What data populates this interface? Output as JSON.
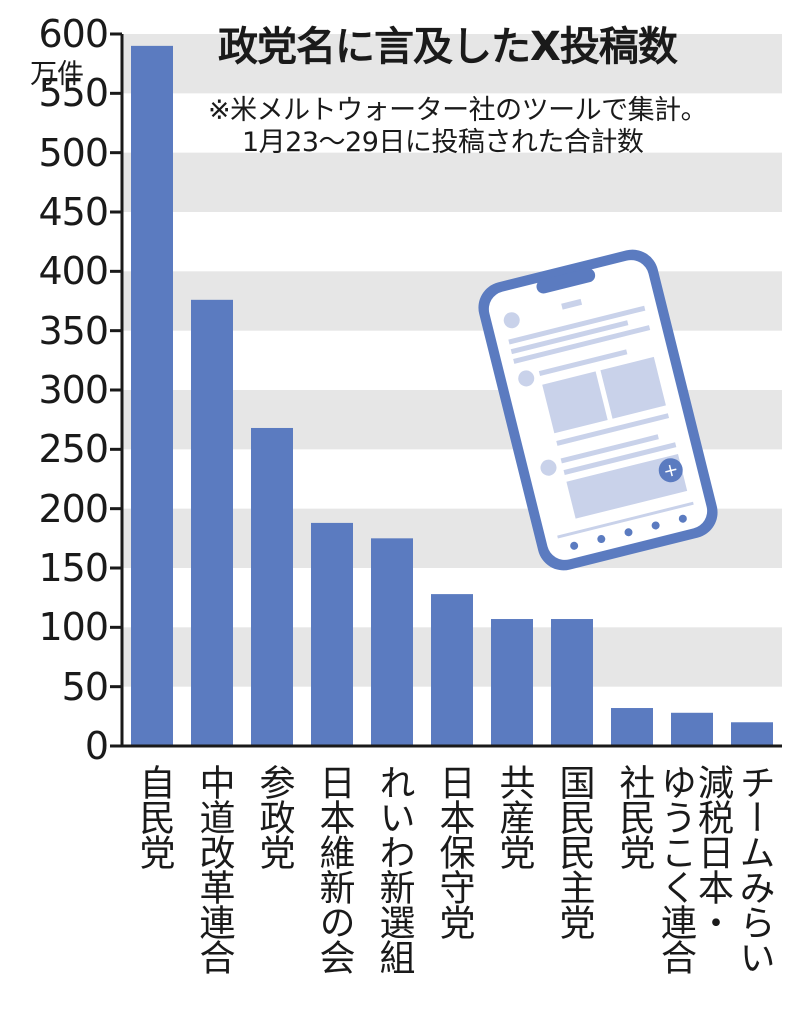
{
  "chart_data": {
    "type": "bar",
    "title": "政党名に言及したX投稿数",
    "note_lines": [
      "※米メルトウォーター社のツールで集計。",
      "1月23～29日に投稿された合計数"
    ],
    "ylabel": "万件",
    "xlabel": "",
    "ylim": [
      0,
      600
    ],
    "yticks": [
      0,
      50,
      100,
      150,
      200,
      250,
      300,
      350,
      400,
      450,
      500,
      550,
      600
    ],
    "grid": "alternating horizontal bands",
    "categories": [
      "自民党",
      "中道改革連合",
      "参政党",
      "日本維新の会",
      "れいわ新選組",
      "日本保守党",
      "共産党",
      "国民民主党",
      "社民党",
      "減税日本・ゆうこく連合",
      "チームみらい"
    ],
    "category_lines": [
      [
        "自民党"
      ],
      [
        "中道改革連合"
      ],
      [
        "参政党"
      ],
      [
        "日本維新の会"
      ],
      [
        "れいわ新選組"
      ],
      [
        "日本保守党"
      ],
      [
        "共産党"
      ],
      [
        "国民民主党"
      ],
      [
        "社民党"
      ],
      [
        "減税日本・",
        "ゆうこく連合"
      ],
      [
        "チームみらい"
      ]
    ],
    "values": [
      590,
      376,
      268,
      188,
      175,
      128,
      107,
      107,
      32,
      28,
      20
    ],
    "colors": {
      "bar": "#5b7bc0",
      "band": "#e6e6e6",
      "axis": "#1a1a1a"
    }
  }
}
